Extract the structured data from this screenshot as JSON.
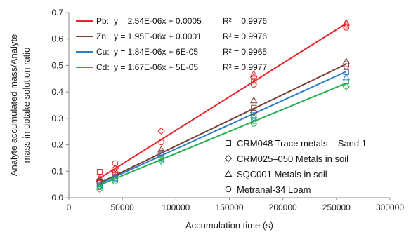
{
  "chart_data": {
    "type": "scatter",
    "xlabel": "Accumulation time (s)",
    "ylabel": "Analyte accumulated mass/Analyte mass in uptake solution ratio",
    "ylabel_lines": [
      "Analyte accumulated mass/Analyte",
      "mass in uptake solution ratio"
    ],
    "xlim": [
      0,
      300000
    ],
    "ylim": [
      0,
      0.7
    ],
    "x_ticks": [
      0,
      50000,
      100000,
      150000,
      200000,
      250000,
      300000
    ],
    "x_tick_labels": [
      "0",
      "50000",
      "100000",
      "150000",
      "200000",
      "250000",
      "300000"
    ],
    "y_ticks": [
      0,
      0.1,
      0.2,
      0.3,
      0.4,
      0.5,
      0.6,
      0.7
    ],
    "y_tick_labels": [
      "0.0",
      "0.1",
      "0.2",
      "0.3",
      "0.4",
      "0.5",
      "0.6",
      "0.7"
    ],
    "grid": false,
    "fit_legend_position": "top-left",
    "marker_legend_position": "bottom-right",
    "series": [
      {
        "name": "Pb",
        "label": "Pb:",
        "equation": "y = 2.54E-06x + 0.0005",
        "r2": "R² = 0.9976",
        "color": "#e8262a",
        "slope": 2.54e-06,
        "intercept": 0.0005,
        "points": [
          {
            "x": 28800,
            "y": 0.098,
            "marker": "square"
          },
          {
            "x": 28800,
            "y": 0.075,
            "marker": "triangle"
          },
          {
            "x": 28800,
            "y": 0.062,
            "marker": "diamond"
          },
          {
            "x": 28800,
            "y": 0.055,
            "marker": "circle"
          },
          {
            "x": 43200,
            "y": 0.13,
            "marker": "circle"
          },
          {
            "x": 43200,
            "y": 0.11,
            "marker": "diamond"
          },
          {
            "x": 43200,
            "y": 0.103,
            "marker": "triangle"
          },
          {
            "x": 86400,
            "y": 0.252,
            "marker": "diamond"
          },
          {
            "x": 86400,
            "y": 0.21,
            "marker": "circle"
          },
          {
            "x": 172800,
            "y": 0.468,
            "marker": "triangle"
          },
          {
            "x": 172800,
            "y": 0.455,
            "marker": "diamond"
          },
          {
            "x": 172800,
            "y": 0.442,
            "marker": "square"
          },
          {
            "x": 172800,
            "y": 0.428,
            "marker": "circle"
          },
          {
            "x": 259200,
            "y": 0.662,
            "marker": "triangle"
          },
          {
            "x": 259200,
            "y": 0.655,
            "marker": "diamond"
          },
          {
            "x": 259200,
            "y": 0.648,
            "marker": "square"
          },
          {
            "x": 259200,
            "y": 0.643,
            "marker": "circle"
          }
        ]
      },
      {
        "name": "Zn",
        "label": "Zn:",
        "equation": "y = 1.95E-06x + 0.0001",
        "r2": "R² = 0.9976",
        "color": "#7b3f34",
        "slope": 1.95e-06,
        "intercept": 0.0001,
        "points": [
          {
            "x": 28800,
            "y": 0.068,
            "marker": "triangle"
          },
          {
            "x": 28800,
            "y": 0.058,
            "marker": "square"
          },
          {
            "x": 43200,
            "y": 0.088,
            "marker": "square"
          },
          {
            "x": 43200,
            "y": 0.08,
            "marker": "circle"
          },
          {
            "x": 86400,
            "y": 0.182,
            "marker": "triangle"
          },
          {
            "x": 86400,
            "y": 0.17,
            "marker": "square"
          },
          {
            "x": 172800,
            "y": 0.368,
            "marker": "triangle"
          },
          {
            "x": 172800,
            "y": 0.34,
            "marker": "square"
          },
          {
            "x": 172800,
            "y": 0.322,
            "marker": "diamond"
          },
          {
            "x": 259200,
            "y": 0.515,
            "marker": "triangle"
          },
          {
            "x": 259200,
            "y": 0.505,
            "marker": "square"
          },
          {
            "x": 259200,
            "y": 0.497,
            "marker": "circle"
          }
        ]
      },
      {
        "name": "Cu",
        "label": "Cu:",
        "equation": "y = 1.84E-06x + 6E-05",
        "r2": "R² = 0.9965",
        "color": "#2a7fc9",
        "slope": 1.84e-06,
        "intercept": 6e-05,
        "points": [
          {
            "x": 28800,
            "y": 0.05,
            "marker": "square"
          },
          {
            "x": 28800,
            "y": 0.045,
            "marker": "circle"
          },
          {
            "x": 43200,
            "y": 0.075,
            "marker": "square"
          },
          {
            "x": 43200,
            "y": 0.07,
            "marker": "diamond"
          },
          {
            "x": 86400,
            "y": 0.16,
            "marker": "square"
          },
          {
            "x": 86400,
            "y": 0.152,
            "marker": "circle"
          },
          {
            "x": 172800,
            "y": 0.312,
            "marker": "square"
          },
          {
            "x": 172800,
            "y": 0.302,
            "marker": "diamond"
          },
          {
            "x": 259200,
            "y": 0.475,
            "marker": "square"
          },
          {
            "x": 259200,
            "y": 0.455,
            "marker": "triangle"
          }
        ]
      },
      {
        "name": "Cd",
        "label": "Cd:",
        "equation": "y = 1.67E-06x + 5E-05",
        "r2": "R² = 0.9977",
        "color": "#23b14d",
        "slope": 1.67e-06,
        "intercept": 5e-05,
        "points": [
          {
            "x": 28800,
            "y": 0.04,
            "marker": "circle"
          },
          {
            "x": 28800,
            "y": 0.032,
            "marker": "diamond"
          },
          {
            "x": 43200,
            "y": 0.068,
            "marker": "square"
          },
          {
            "x": 43200,
            "y": 0.062,
            "marker": "circle"
          },
          {
            "x": 86400,
            "y": 0.145,
            "marker": "square"
          },
          {
            "x": 86400,
            "y": 0.138,
            "marker": "diamond"
          },
          {
            "x": 172800,
            "y": 0.29,
            "marker": "square"
          },
          {
            "x": 172800,
            "y": 0.28,
            "marker": "circle"
          },
          {
            "x": 259200,
            "y": 0.44,
            "marker": "square"
          },
          {
            "x": 259200,
            "y": 0.42,
            "marker": "diamond"
          }
        ]
      }
    ],
    "marker_legend": [
      {
        "marker": "square",
        "label": "CRM048 Trace metals – Sand 1"
      },
      {
        "marker": "diamond",
        "label": "CRM025–050 Metals in soil"
      },
      {
        "marker": "triangle",
        "label": "SQC001 Metals in soil"
      },
      {
        "marker": "circle",
        "label": "Metranal-34 Loam"
      }
    ]
  }
}
